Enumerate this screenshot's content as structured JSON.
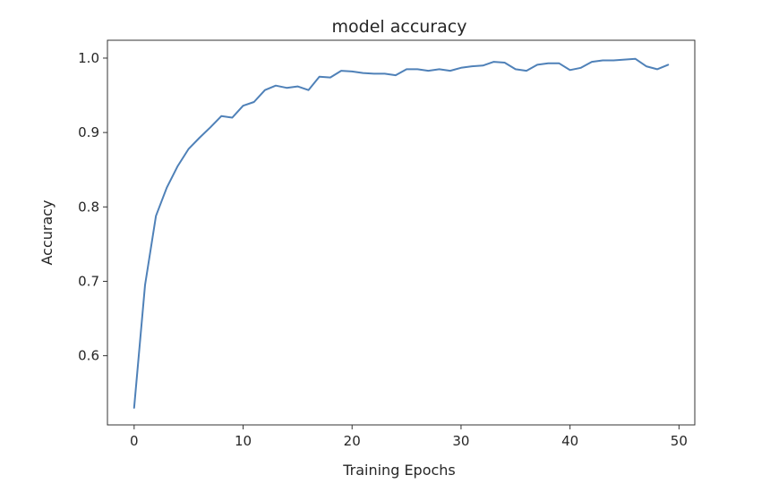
{
  "chart_data": {
    "type": "line",
    "title": "model accuracy",
    "xlabel": "Training Epochs",
    "ylabel": "Accuracy",
    "xlim": [
      -2.45,
      51.45
    ],
    "ylim": [
      0.507,
      1.024
    ],
    "xticks": [
      0,
      10,
      20,
      30,
      40,
      50
    ],
    "yticks": [
      0.6,
      0.7,
      0.8,
      0.9,
      1.0
    ],
    "xtick_labels": [
      "0",
      "10",
      "20",
      "30",
      "40",
      "50"
    ],
    "ytick_labels": [
      "0.6",
      "0.7",
      "0.8",
      "0.9",
      "1.0"
    ],
    "grid": false,
    "legend": "none",
    "series": [
      {
        "color": "#4f81b8",
        "x": [
          0,
          1,
          2,
          3,
          4,
          5,
          6,
          7,
          8,
          9,
          10,
          11,
          12,
          13,
          14,
          15,
          16,
          17,
          18,
          19,
          20,
          21,
          22,
          23,
          24,
          25,
          26,
          27,
          28,
          29,
          30,
          31,
          32,
          33,
          34,
          35,
          36,
          37,
          38,
          39,
          40,
          41,
          42,
          43,
          44,
          45,
          46,
          47,
          48,
          49
        ],
        "values": [
          0.53,
          0.695,
          0.788,
          0.826,
          0.855,
          0.878,
          0.893,
          0.907,
          0.922,
          0.92,
          0.936,
          0.941,
          0.957,
          0.963,
          0.96,
          0.962,
          0.957,
          0.975,
          0.974,
          0.983,
          0.982,
          0.98,
          0.979,
          0.979,
          0.977,
          0.985,
          0.985,
          0.983,
          0.985,
          0.983,
          0.987,
          0.989,
          0.99,
          0.995,
          0.994,
          0.985,
          0.983,
          0.991,
          0.993,
          0.993,
          0.984,
          0.987,
          0.995,
          0.997,
          0.997,
          0.998,
          0.999,
          0.989,
          0.985,
          0.991
        ]
      }
    ]
  }
}
